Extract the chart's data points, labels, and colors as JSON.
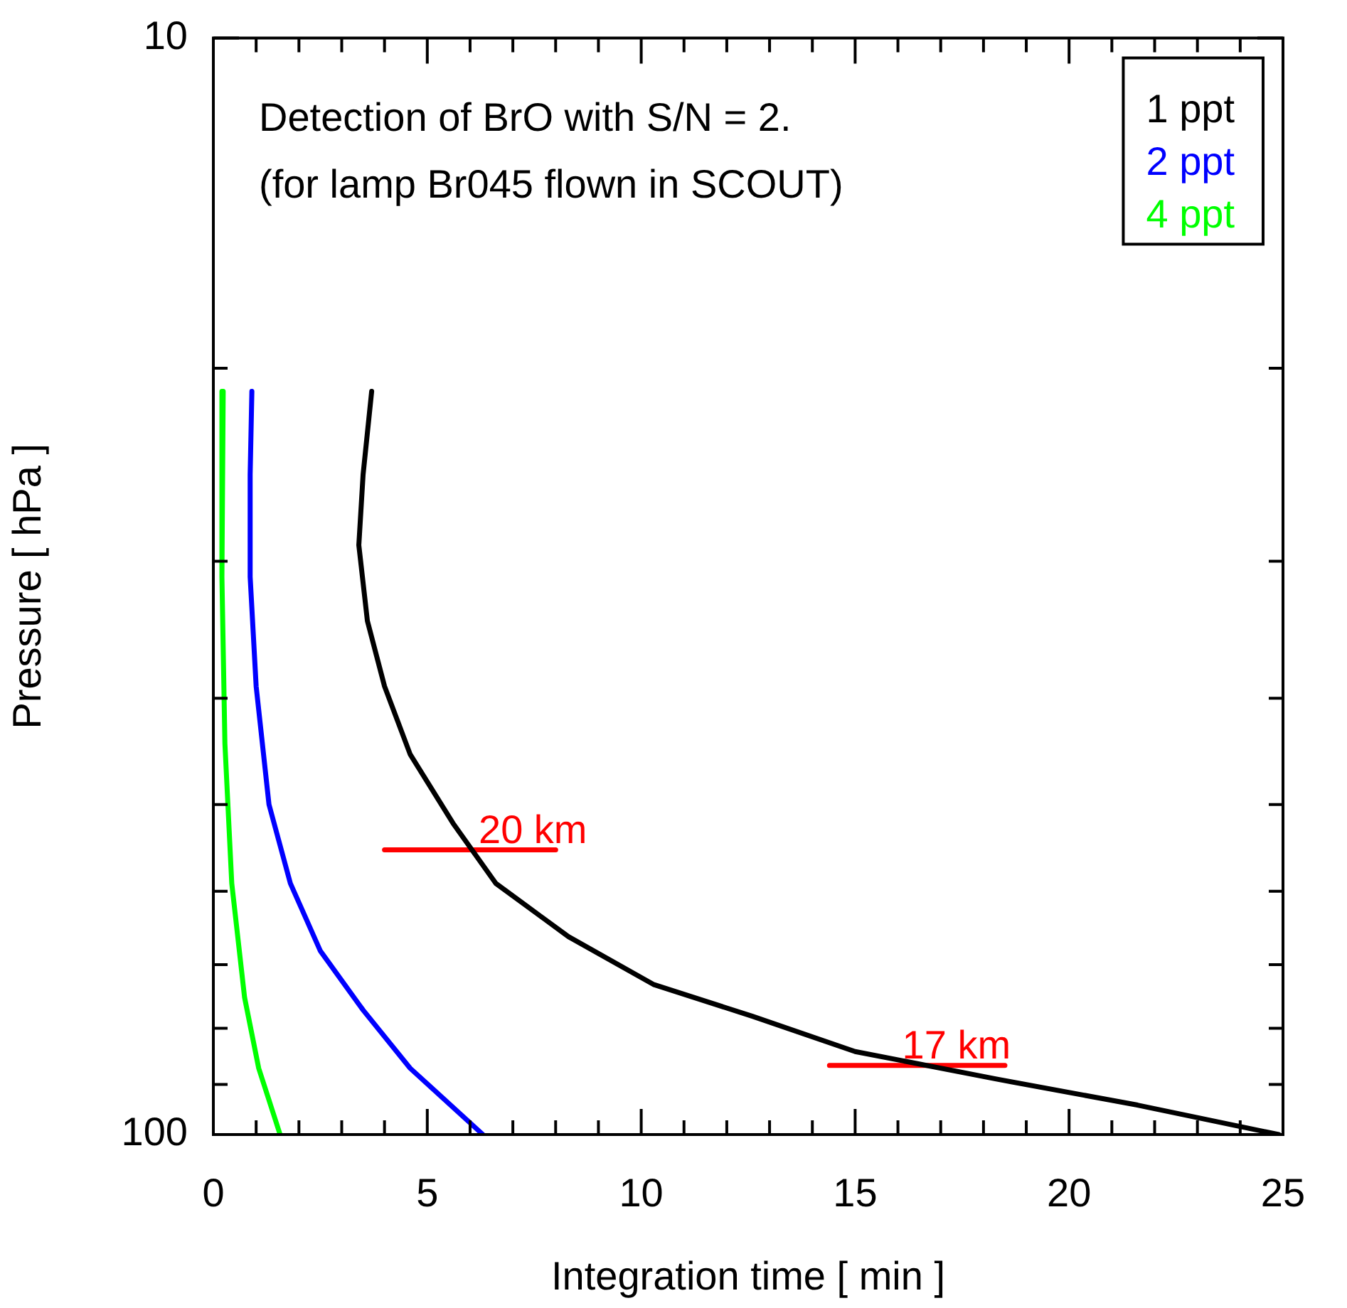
{
  "chart_data": {
    "type": "line",
    "title": "Detection of BrO with S/N = 2.",
    "subtitle": "(for lamp Br045 flown in SCOUT)",
    "xlabel": "Integration time [ min ]",
    "ylabel": "Pressure [ hPa ]",
    "log": "y",
    "xlim": [
      0,
      25
    ],
    "ylim": [
      100,
      10
    ],
    "xticks": [
      0,
      {
        "value": 1,
        "label": null
      },
      {
        "value": 2,
        "label": null
      },
      {
        "value": 3,
        "label": null
      },
      {
        "value": 4,
        "label": null
      },
      5,
      {
        "value": 6,
        "label": null
      },
      {
        "value": 7,
        "label": null
      },
      {
        "value": 8,
        "label": null
      },
      {
        "value": 9,
        "label": null
      },
      10,
      {
        "value": 11,
        "label": null
      },
      {
        "value": 12,
        "label": null
      },
      {
        "value": 13,
        "label": null
      },
      {
        "value": 14,
        "label": null
      },
      15,
      {
        "value": 16,
        "label": null
      },
      {
        "value": 17,
        "label": null
      },
      {
        "value": 18,
        "label": null
      },
      {
        "value": 19,
        "label": null
      },
      20,
      {
        "value": 21,
        "label": null
      },
      {
        "value": 22,
        "label": null
      },
      {
        "value": 23,
        "label": null
      },
      {
        "value": 24,
        "label": null
      },
      25
    ],
    "yticks": [
      10,
      {
        "value": 20,
        "label": null
      },
      {
        "value": 30,
        "label": null
      },
      {
        "value": 40,
        "label": null
      },
      {
        "value": 50,
        "label": null
      },
      {
        "value": 60,
        "label": null
      },
      {
        "value": 70,
        "label": null
      },
      {
        "value": 80,
        "label": null
      },
      {
        "value": 90,
        "label": null
      },
      100
    ],
    "grid": false,
    "legend": "top right",
    "marker": "none",
    "line_style": "solid",
    "series": [
      {
        "name": "1 ppt",
        "color": "#000000",
        "x": [
          3.7,
          3.5,
          3.4,
          3.6,
          4.0,
          4.6,
          5.6,
          6.6,
          8.3,
          10.3,
          12.6,
          15.0,
          18.3,
          21.6,
          24.9
        ],
        "values": [
          21,
          25,
          29,
          34,
          39,
          45,
          52,
          59,
          66,
          73,
          78,
          84,
          89,
          94,
          100
        ]
      },
      {
        "name": "2 ppt",
        "color": "#0000ff",
        "x": [
          0.9,
          0.86,
          0.86,
          1.0,
          1.3,
          1.8,
          2.5,
          3.5,
          4.6,
          6.3
        ],
        "values": [
          21,
          25,
          31,
          39,
          50,
          59,
          68,
          77,
          87,
          100
        ]
      },
      {
        "name": "4 ppt",
        "color": "#00ff00",
        "x": [
          0.23,
          0.2,
          0.27,
          0.43,
          0.73,
          1.06,
          1.56
        ],
        "values": [
          21,
          31,
          44,
          59,
          75,
          87,
          100
        ]
      },
      {
        "color": "#ff0000",
        "x": [
          4,
          8
        ],
        "values": [
          55,
          55
        ]
      },
      {
        "color": "#ff0000",
        "x": [
          14.4,
          18.5
        ],
        "values": [
          86.5,
          86.5
        ]
      }
    ],
    "annotations": [
      {
        "text": "20 km",
        "x": 6.2,
        "y": 55
      },
      {
        "text": "17 km",
        "x": 16.1,
        "y": 86.5
      }
    ]
  }
}
